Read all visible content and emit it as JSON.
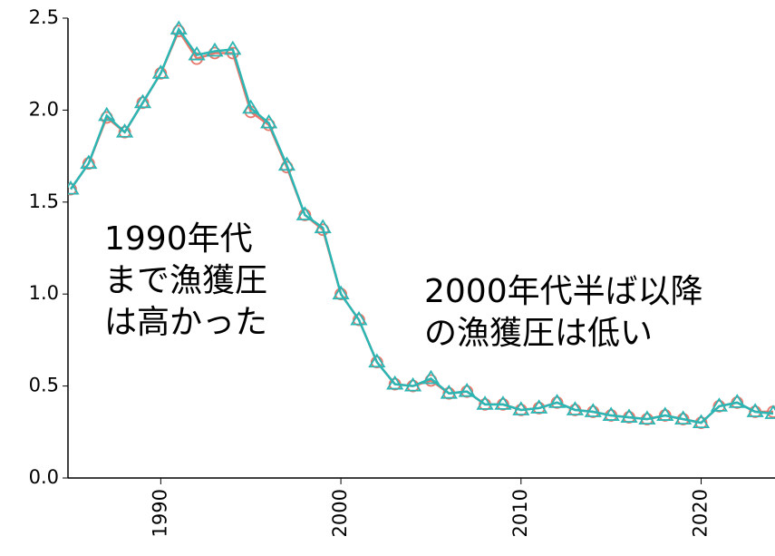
{
  "chart_data": {
    "type": "line",
    "x": [
      1985,
      1986,
      1987,
      1988,
      1989,
      1990,
      1991,
      1992,
      1993,
      1994,
      1995,
      1996,
      1997,
      1998,
      1999,
      2000,
      2001,
      2002,
      2003,
      2004,
      2005,
      2006,
      2007,
      2008,
      2009,
      2010,
      2011,
      2012,
      2013,
      2014,
      2015,
      2016,
      2017,
      2018,
      2019,
      2020,
      2021,
      2022,
      2023,
      2024
    ],
    "series": [
      {
        "color": "#e8776c",
        "marker": "circle",
        "values": [
          1.57,
          1.71,
          1.96,
          1.88,
          2.04,
          2.2,
          2.43,
          2.28,
          2.31,
          2.31,
          1.99,
          1.92,
          1.69,
          1.43,
          1.35,
          1.0,
          0.86,
          0.63,
          0.51,
          0.5,
          0.53,
          0.46,
          0.47,
          0.4,
          0.4,
          0.37,
          0.38,
          0.41,
          0.37,
          0.36,
          0.34,
          0.33,
          0.32,
          0.34,
          0.32,
          0.3,
          0.39,
          0.41,
          0.36,
          0.36
        ]
      },
      {
        "color": "#2bb5b3",
        "marker": "triangle",
        "values": [
          1.57,
          1.71,
          1.97,
          1.88,
          2.04,
          2.2,
          2.44,
          2.3,
          2.32,
          2.33,
          2.01,
          1.93,
          1.7,
          1.43,
          1.36,
          1.0,
          0.86,
          0.63,
          0.51,
          0.5,
          0.54,
          0.46,
          0.47,
          0.4,
          0.4,
          0.37,
          0.38,
          0.41,
          0.37,
          0.36,
          0.34,
          0.33,
          0.32,
          0.34,
          0.32,
          0.3,
          0.39,
          0.41,
          0.36,
          0.35
        ]
      }
    ],
    "xlim": [
      1984.85,
      2024.1
    ],
    "xticks": [
      1990,
      2000,
      2010,
      2020
    ],
    "ylim": [
      0,
      2.5
    ],
    "yticks": [
      {
        "value": 0,
        "label": "0.0"
      },
      {
        "value": 0.5,
        "label": "0.5"
      },
      {
        "value": 1,
        "label": "1.0"
      },
      {
        "value": 1.5,
        "label": "1.5"
      },
      {
        "value": 2,
        "label": "2.0"
      },
      {
        "value": 2.5,
        "label": "2.5"
      }
    ],
    "grid": false,
    "annotations": [
      [
        "1990年代",
        "まで漁獲圧",
        "は高かった"
      ],
      [
        "2000年代半ば以降",
        "の漁獲圧は低い"
      ]
    ]
  }
}
